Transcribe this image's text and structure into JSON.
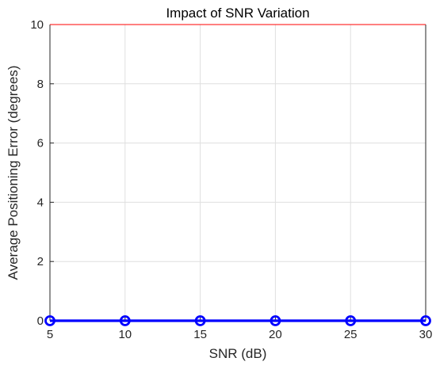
{
  "chart_data": {
    "type": "line",
    "title": "Impact of SNR Variation",
    "xlabel": "SNR (dB)",
    "ylabel": "Average Positioning Error (degrees)",
    "xlim": [
      5,
      30
    ],
    "ylim": [
      0,
      10
    ],
    "x_ticks": [
      5,
      10,
      15,
      20,
      25,
      30
    ],
    "y_ticks": [
      0,
      2,
      4,
      6,
      8,
      10
    ],
    "grid": true,
    "legend": "none",
    "series": [
      {
        "x": [
          5,
          10,
          15,
          20,
          25,
          30
        ],
        "y": [
          0,
          0,
          0,
          0,
          0,
          0
        ],
        "color": "#0000ff",
        "marker": "circle"
      }
    ]
  }
}
